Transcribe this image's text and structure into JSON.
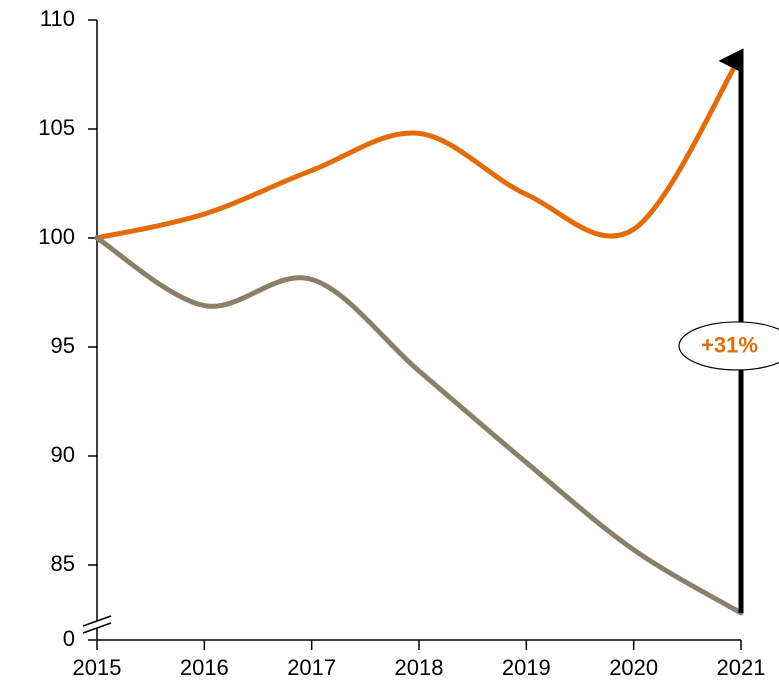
{
  "chart_data": {
    "type": "line",
    "x": [
      2015,
      2016,
      2017,
      2018,
      2019,
      2020,
      2021
    ],
    "series": [
      {
        "color": "#e36c0a",
        "values": [
          100,
          101.1,
          103.1,
          104.8,
          102.0,
          100.4,
          108.4
        ]
      },
      {
        "color": "#8a7f68",
        "values": [
          100,
          96.9,
          98.1,
          93.9,
          89.7,
          85.7,
          82.8
        ]
      }
    ],
    "xlim": [
      2015,
      2021
    ],
    "xticks": [
      2015,
      2016,
      2017,
      2018,
      2019,
      2020,
      2021
    ],
    "ylim": [
      0,
      110
    ],
    "yticks": [
      0,
      85,
      90,
      95,
      100,
      105,
      110
    ],
    "ybreak": [
      0,
      82.5
    ],
    "annotation": "+31%",
    "annotation_color": "#e36c0a"
  }
}
